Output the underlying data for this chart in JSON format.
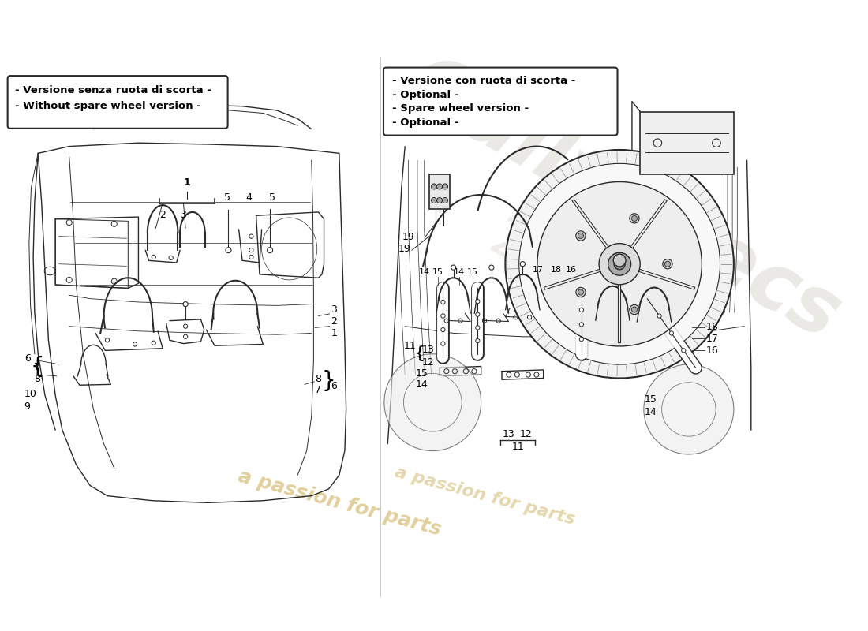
{
  "left_box_lines": [
    "- Versione senza ruota di scorta -",
    "- Without spare wheel version -"
  ],
  "right_box_lines": [
    "- Versione con ruota di scorta -",
    "- Optional -",
    "- Spare wheel version -",
    "- Optional -"
  ],
  "background_color": "#ffffff",
  "line_color": "#2a2a2a",
  "light_line_color": "#666666",
  "watermark_gold": "#c8a84a",
  "watermark_gray": "#d8d4cc"
}
